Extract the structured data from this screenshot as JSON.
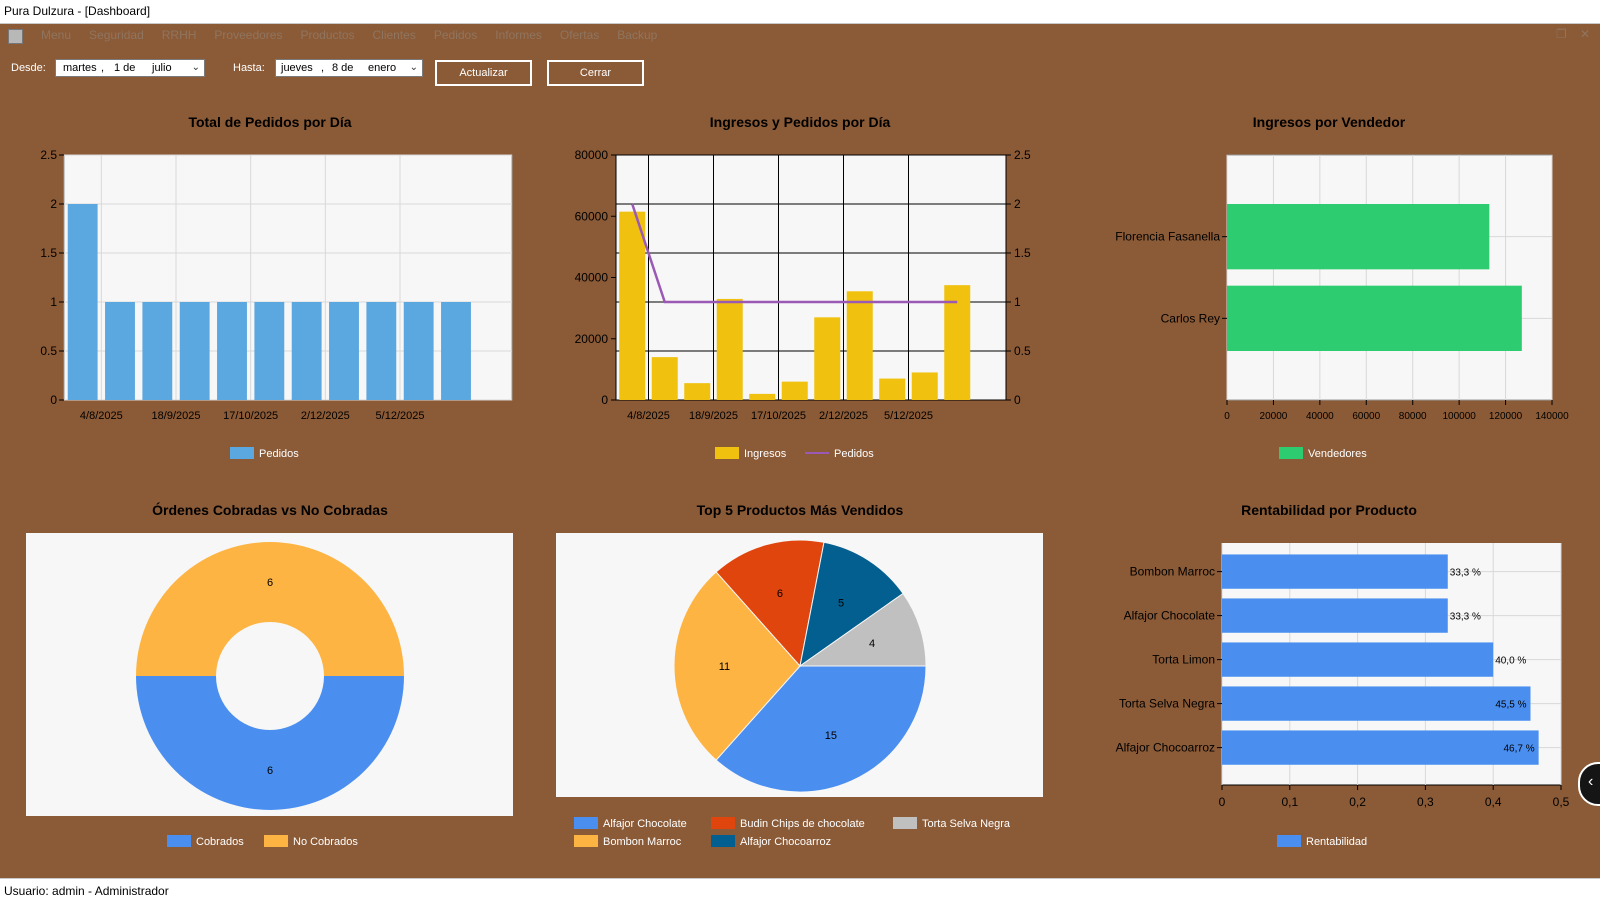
{
  "window": {
    "title": "Pura Dulzura - [Dashboard]"
  },
  "menu": {
    "items": [
      "Menu",
      "Seguridad",
      "RRHH",
      "Proveedores",
      "Productos",
      "Clientes",
      "Pedidos",
      "Informes",
      "Ofertas",
      "Backup"
    ]
  },
  "filters": {
    "from_label": "Desde:",
    "from_date": {
      "weekday": "martes",
      "day": "1 de",
      "month": "julio"
    },
    "to_label": "Hasta:",
    "to_date": {
      "weekday": "jueves",
      "day": "8 de",
      "month": "enero"
    },
    "refresh_label": "Actualizar",
    "close_label": "Cerrar"
  },
  "status": {
    "text": "Usuario: admin - Administrador"
  },
  "chart_data": [
    {
      "type": "bar",
      "title": "Total de Pedidos por Día",
      "x_tick_labels": [
        "4/8/2025",
        "18/9/2025",
        "17/10/2025",
        "2/12/2025",
        "5/12/2025"
      ],
      "values": [
        2,
        1,
        1,
        1,
        1,
        1,
        1,
        1,
        1,
        1,
        1
      ],
      "ylim": [
        0,
        2.5
      ],
      "y_ticks": [
        "0",
        "0.5",
        "1",
        "1.5",
        "2",
        "2.5"
      ],
      "legend": [
        "Pedidos"
      ],
      "color": "#5ba7e0",
      "grid": true
    },
    {
      "type": "bar",
      "title": "Ingresos y Pedidos por Día",
      "x_tick_labels": [
        "4/8/2025",
        "18/9/2025",
        "17/10/2025",
        "2/12/2025",
        "5/12/2025"
      ],
      "series": [
        {
          "name": "Ingresos",
          "type": "bar",
          "color": "#f0c20f",
          "values": [
            61500,
            14000,
            5500,
            33000,
            2000,
            6000,
            27000,
            35500,
            7000,
            9000,
            37500
          ]
        },
        {
          "name": "Pedidos",
          "type": "line",
          "axis": "secondary",
          "color": "#9b59b6",
          "values": [
            2,
            1,
            1,
            1,
            1,
            1,
            1,
            1,
            1,
            1,
            1
          ]
        }
      ],
      "ylim": [
        0,
        80000
      ],
      "y_ticks": [
        "0",
        "20000",
        "40000",
        "60000",
        "80000"
      ],
      "y2lim": [
        0,
        2.5
      ],
      "y2_ticks": [
        "0",
        "0.5",
        "1",
        "1.5",
        "2",
        "2.5"
      ],
      "grid": true
    },
    {
      "type": "bar",
      "orientation": "horizontal",
      "title": "Ingresos por Vendedor",
      "categories": [
        "Florencia Fasanella",
        "Carlos Rey"
      ],
      "values": [
        113000,
        127000
      ],
      "xlim": [
        0,
        140000
      ],
      "x_ticks": [
        "0",
        "20000",
        "40000",
        "60000",
        "80000",
        "100000",
        "120000",
        "140000"
      ],
      "legend": [
        "Vendedores"
      ],
      "color": "#2ecc71",
      "grid": true
    },
    {
      "type": "pie",
      "subtype": "doughnut",
      "title": "Órdenes Cobradas vs No Cobradas",
      "categories": [
        "Cobrados",
        "No Cobrados"
      ],
      "values": [
        6,
        6
      ],
      "colors": [
        "#4a8ff0",
        "#fdb443"
      ]
    },
    {
      "type": "pie",
      "title": "Top 5 Productos Más Vendidos",
      "categories": [
        "Alfajor Chocolate",
        "Bombon Marroc",
        "Budin Chips de chocolate",
        "Alfajor Chocoarroz",
        "Torta Selva Negra"
      ],
      "values": [
        15,
        11,
        6,
        5,
        4
      ],
      "colors": [
        "#4a8ff0",
        "#fdb443",
        "#e0450e",
        "#035f8f",
        "#c0c0c0"
      ]
    },
    {
      "type": "bar",
      "orientation": "horizontal",
      "title": "Rentabilidad por Producto",
      "categories": [
        "Bombon Marroc",
        "Alfajor Chocolate",
        "Torta Limon",
        "Torta Selva Negra",
        "Alfajor Chocoarroz"
      ],
      "values": [
        0.333,
        0.333,
        0.4,
        0.455,
        0.467
      ],
      "labels": [
        "33,3 %",
        "33,3 %",
        "40,0 %",
        "45,5 %",
        "46,7 %"
      ],
      "xlim": [
        0,
        0.5
      ],
      "x_ticks": [
        "0",
        "0,1",
        "0,2",
        "0,3",
        "0,4",
        "0,5"
      ],
      "legend": [
        "Rentabilidad"
      ],
      "color": "#4a8ff0",
      "grid": true
    }
  ]
}
